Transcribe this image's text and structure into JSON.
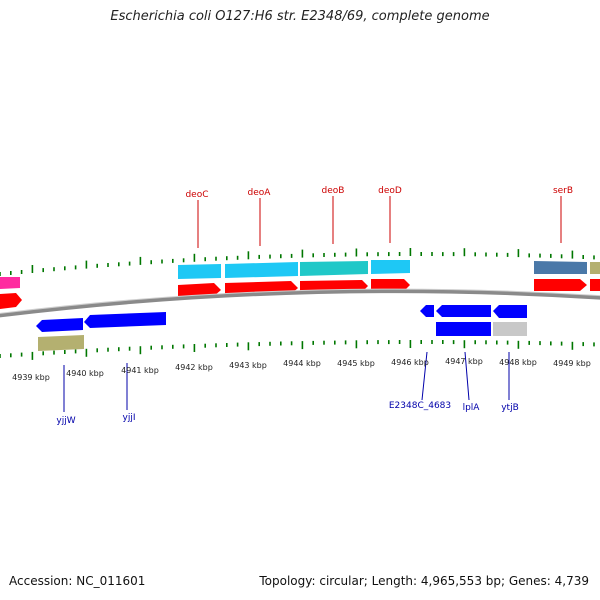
{
  "header": {
    "title": "Escherichia coli O127:H6 str. E2348/69, complete genome"
  },
  "footer": {
    "accession": "Accession: NC_011601",
    "stats": "Topology: circular; Length: 4,965,553 bp; Genes: 4,739"
  },
  "colors": {
    "label_forward": "#cc0000",
    "label_reverse": "#0000aa",
    "tick": "#007700",
    "backbone": "#999999",
    "cds": "#ff0000",
    "gene_blue": "#0000ff",
    "gene_cyan": "#1ec8f5",
    "gene_teal": "#20c8c8",
    "gene_slate": "#4a78a8",
    "gene_olive": "#b4b070",
    "gene_gray": "#c8c8c8",
    "gene_pink": "#ff2aa0"
  },
  "axis": {
    "unit": "kbp",
    "ticks": [
      "4939 kbp",
      "4940 kbp",
      "4941 kbp",
      "4942 kbp",
      "4943 kbp",
      "4944 kbp",
      "4945 kbp",
      "4946 kbp",
      "4947 kbp",
      "4948 kbp",
      "4949 kbp"
    ]
  },
  "genes": {
    "forward": [
      {
        "name": "deoC"
      },
      {
        "name": "deoA"
      },
      {
        "name": "deoB"
      },
      {
        "name": "deoD"
      },
      {
        "name": "serB"
      }
    ],
    "reverse": [
      {
        "name": "yjjW"
      },
      {
        "name": "yjjI"
      },
      {
        "name": "E2348C_4683"
      },
      {
        "name": "lplA"
      },
      {
        "name": "ytjB"
      }
    ]
  }
}
